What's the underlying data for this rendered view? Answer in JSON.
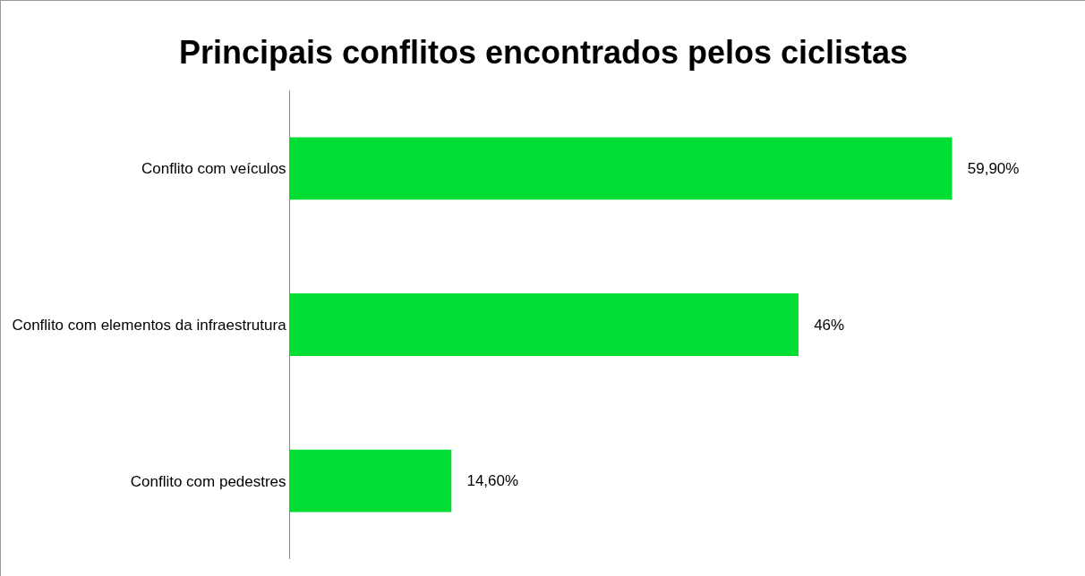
{
  "chart_data": {
    "type": "bar",
    "orientation": "horizontal",
    "title": "Principais conflitos encontrados pelos ciclistas",
    "categories": [
      "Conflito com veículos",
      "Conflito com elementos da infraestrutura",
      "Conflito com pedestres"
    ],
    "values": [
      59.9,
      46,
      14.6
    ],
    "value_labels": [
      "59,90%",
      "46%",
      "14,60%"
    ],
    "color": "#00dd33"
  }
}
